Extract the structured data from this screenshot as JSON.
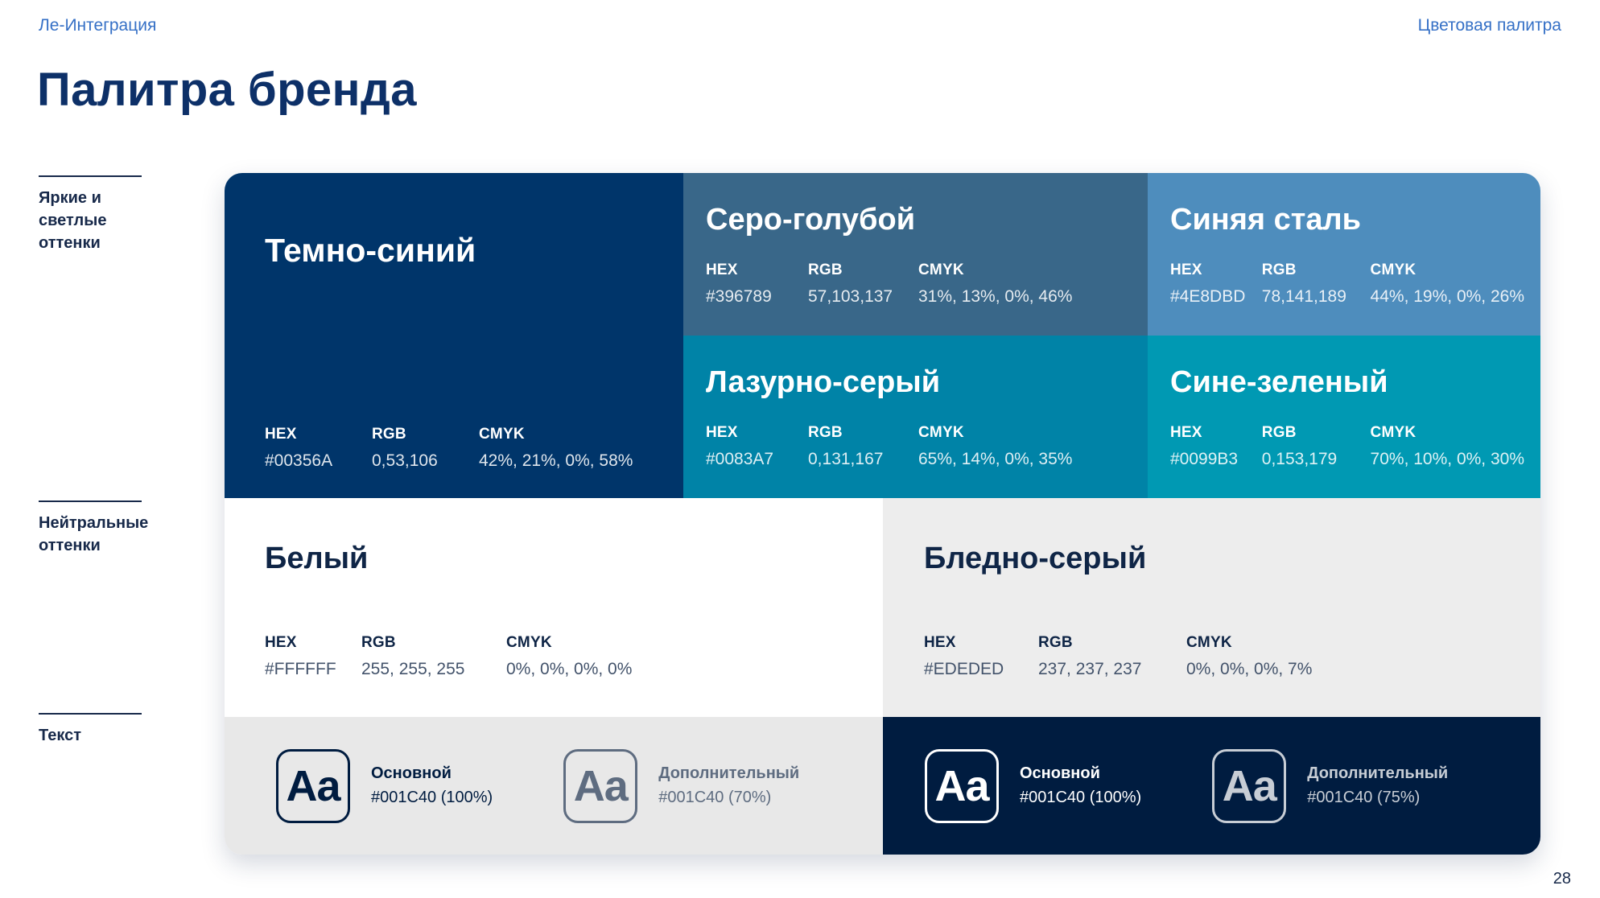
{
  "header": {
    "left": "Ле-Интеграция",
    "right": "Цветовая палитра"
  },
  "title": "Палитра бренда",
  "sidebar": [
    {
      "label": "Яркие и\nсветлые\nоттенки"
    },
    {
      "label": "Нейтральные\nоттенки"
    },
    {
      "label": "Текст"
    }
  ],
  "spec_labels": {
    "hex": "HEX",
    "rgb": "RGB",
    "cmyk": "CMYK"
  },
  "swatches": [
    {
      "name": "Темно-синий",
      "hex": "#00356A",
      "rgb": "0,53,106",
      "cmyk": "42%, 21%, 0%, 58%"
    },
    {
      "name": "Серо-голубой",
      "hex": "#396789",
      "rgb": "57,103,137",
      "cmyk": "31%, 13%, 0%, 46%"
    },
    {
      "name": "Синяя сталь",
      "hex": "#4E8DBD",
      "rgb": "78,141,189",
      "cmyk": "44%, 19%, 0%, 26%"
    },
    {
      "name": "Лазурно-серый",
      "hex": "#0083A7",
      "rgb": "0,131,167",
      "cmyk": "65%, 14%, 0%, 35%"
    },
    {
      "name": "Сине-зеленый",
      "hex": "#0099B3",
      "rgb": "0,153,179",
      "cmyk": "70%, 10%, 0%, 30%"
    },
    {
      "name": "Белый",
      "hex": "#FFFFFF",
      "rgb": "255, 255, 255",
      "cmyk": "0%, 0%, 0%, 0%"
    },
    {
      "name": "Бледно-серый",
      "hex": "#EDEDED",
      "rgb": "237, 237, 237",
      "cmyk": "0%, 0%, 0%, 7%"
    }
  ],
  "text_samples": {
    "light": [
      {
        "sample": "Aa",
        "name": "Основной",
        "value": "#001C40 (100%)"
      },
      {
        "sample": "Aa",
        "name": "Дополнительный",
        "value": "#001C40 (70%)"
      }
    ],
    "dark": [
      {
        "sample": "Aa",
        "name": "Основной",
        "value": "#001C40 (100%)"
      },
      {
        "sample": "Aa",
        "name": "Дополнительный",
        "value": "#001C40 (75%)"
      }
    ]
  },
  "colors": {
    "accent_link": "#3570C6",
    "title_navy": "#0D3068",
    "text_navy": "#001C40"
  },
  "page_number": "28"
}
